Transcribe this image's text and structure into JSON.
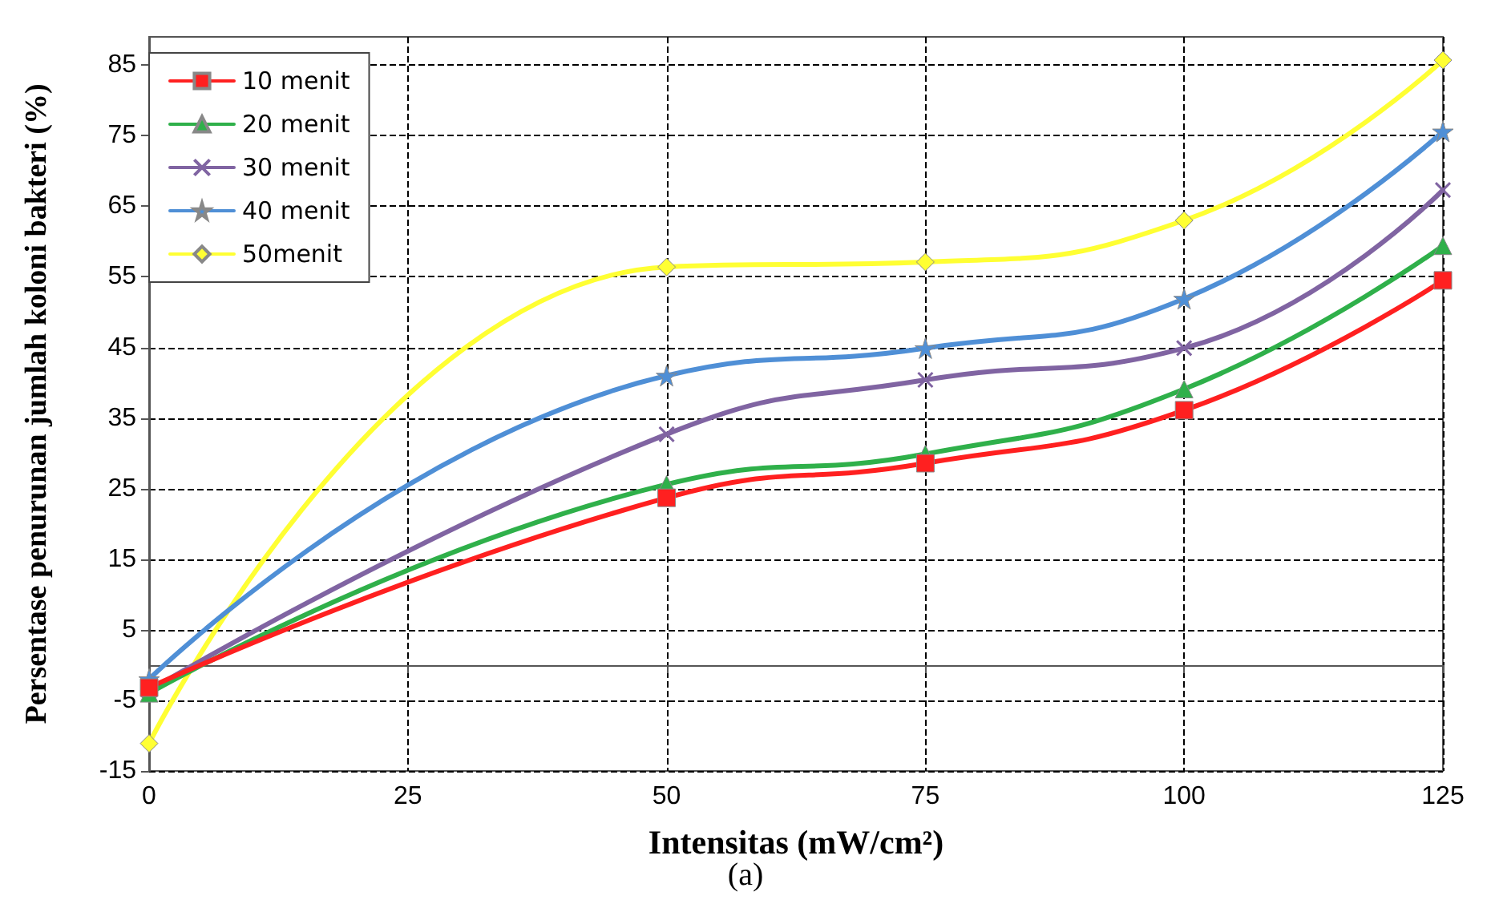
{
  "chart_data": {
    "type": "line",
    "title": "(a)",
    "xlabel": "Intensitas (mW/cm²)",
    "ylabel": "Persentase penurunan jumlah koloni bakteri (%)",
    "x": [
      0,
      50,
      75,
      100,
      125
    ],
    "series": [
      {
        "name": "10 menit",
        "color": "#ff2020",
        "marker": "square",
        "values": [
          -3.2,
          23.7,
          28.6,
          36.1,
          54.5
        ]
      },
      {
        "name": "20 menit",
        "color": "#2fb04a",
        "marker": "triangle",
        "values": [
          -4,
          25.6,
          29.9,
          39.1,
          59.4
        ]
      },
      {
        "name": "30 menit",
        "color": "#8064a2",
        "marker": "cross",
        "values": [
          -3.6,
          32.7,
          40.4,
          44.9,
          67.3
        ]
      },
      {
        "name": "40 menit",
        "color": "#4f8fd6",
        "marker": "star",
        "values": [
          -2,
          41,
          44.9,
          51.9,
          75.6
        ]
      },
      {
        "name": "50menit",
        "color": "#ffff33",
        "marker": "diamond",
        "values": [
          -11.1,
          56.4,
          57.1,
          63,
          85.7
        ]
      }
    ],
    "xlim": [
      0,
      125
    ],
    "xticks": [
      0,
      25,
      50,
      75,
      100,
      125
    ],
    "ylim": [
      -15,
      89
    ],
    "yticks": [
      -15,
      -5,
      5,
      15,
      25,
      35,
      45,
      55,
      65,
      75,
      85
    ],
    "grid": true,
    "legend": "top left",
    "line_style": "solid"
  }
}
